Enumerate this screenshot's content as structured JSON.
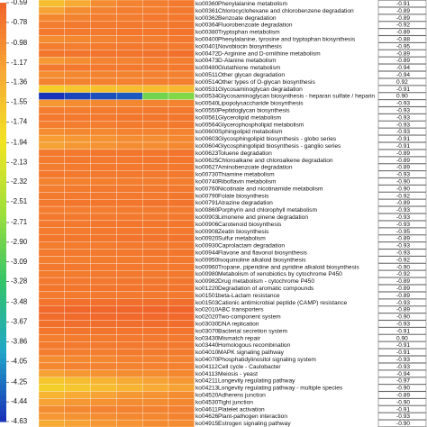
{
  "chart_data": {
    "type": "heatmap",
    "colors": [
      "#1a2fb8",
      "#1fa6c8",
      "#33c46a",
      "#9ee03a",
      "#f2e423",
      "#f7a836",
      "#f0642a"
    ],
    "ylim": [
      -4.63,
      -0.59
    ],
    "yticks": [
      -0.59,
      -0.78,
      -0.98,
      -1.17,
      -1.36,
      -1.55,
      -1.74,
      -1.94,
      -2.13,
      -2.32,
      -2.51,
      -2.71,
      {
        "value": -2.9,
        "label": "-2.90"
      },
      -3.09,
      -3.28,
      -3.48,
      -3.67,
      -3.86,
      -4.05,
      -4.25,
      -4.44,
      -4.63
    ],
    "categories": [
      "ko00360",
      "ko00361",
      "ko00362",
      "ko00364",
      "ko00380",
      "ko00400",
      "ko00401",
      "ko00472",
      "ko00473",
      "ko00480",
      "ko00511",
      "ko00514",
      "ko00531",
      "ko00534",
      "ko00540",
      "ko00550",
      "ko00561",
      "ko00564",
      "ko00600",
      "ko00603",
      "ko00604",
      "ko00623",
      "ko00625",
      "ko00627",
      "ko00730",
      "ko00740",
      "ko00760",
      "ko00790",
      "ko00791",
      "ko00860",
      "ko00903",
      "ko00906",
      "ko00908",
      "ko00920",
      "ko00930",
      "ko00944",
      "ko00950",
      "ko00960",
      "ko00980",
      "ko00982",
      "ko01220",
      "ko01501",
      "ko01503",
      "ko02010",
      "ko02020",
      "ko03030",
      "ko03070",
      "ko03430",
      "ko03440",
      "ko04010",
      "ko04070",
      "ko04112",
      "ko04113",
      "ko04211",
      "ko04213",
      "ko04520",
      "ko04530",
      "ko04611",
      "ko04626",
      "ko04915"
    ],
    "names": [
      "Phenylalanine metabolism",
      "Chlorocyclohexane and chlorobenzene degradation",
      "Benzoate degradation",
      "Fluorobenzoate degradation",
      "Tryptophan metabolism",
      "Phenylalanine, tyrosine and tryptophan biosynthesis",
      "Novobiocin biosynthesis",
      "D-Arginine and D-ornithine metabolism",
      "D-Alanine metabolism",
      "Glutathione metabolism",
      "Other glycan degradation",
      "Other types of O-glycan biosynthesis",
      "Glycosaminoglycan degradation",
      "Glycosaminoglycan biosynthesis - heparan sulfate / heparin",
      "Lipopolysaccharide biosynthesis",
      "Peptidoglycan biosynthesis",
      "Glycerolipid metabolism",
      "Glycerophospholipid metabolism",
      "Sphingolipid metabolism",
      "Glycosphingolipid biosynthesis - globo series",
      "Glycosphingolipid biosynthesis - ganglio series",
      "Toluene degradation",
      "Chloroalkane and chloroalkene degradation",
      "Aminobenzoate degradation",
      "Thiamine metabolism",
      "Riboflavin metabolism",
      "Nicotinate and nicotinamide metabolism",
      "Folate biosynthesis",
      "Atrazine degradation",
      "Porphyrin and chlorophyll metabolism",
      "Limonene and pinene degradation",
      "Carotenoid biosynthesis",
      "Zeatin biosynthesis",
      "Sulfur metabolism",
      "Caprolactam degradation",
      "Flavone and flavonol biosynthesis",
      "Isoquinoline alkaloid biosynthesis",
      "Tropane, piperidine and pyridine alkaloid biosynthesis",
      "Metabolism of xenobiotics by cytochrome P450",
      "Drug metabolism - cytochrome P450",
      "Degradation of aromatic compounds",
      "beta-Lactam resistance",
      "Cationic antimicrobial peptide (CAMP) resistance",
      "ABC transporters",
      "Two-component system",
      "DNA replication",
      "Bacterial secretion system",
      "Mismatch repair",
      "Homologous recombination",
      "MAPK signaling pathway",
      "Phosphatidylinositol signaling system",
      "Cell cycle - Caulobacter",
      "Meiosis - yeast",
      "Longevity regulating pathway",
      "Longevity regulating pathway - multiple species",
      "Adherens junction",
      "Tight junction",
      "Platelet activation",
      "Plant-pathogen interaction",
      "Estrogen signaling pathway"
    ],
    "correlations": [
      "-0.91",
      "-0.89",
      "-0.89",
      "-0.92",
      "-0.89",
      "-0.88",
      "-0.95",
      "-0.89",
      "-0.89",
      "-0.94",
      "-0.94",
      "0.92",
      "-0.91",
      "0.90",
      "-0.93",
      "-0.93",
      "-0.93",
      "-0.93",
      "-0.93",
      "-0.91",
      "-0.91",
      "-0.89",
      "-0.89",
      "-0.89",
      "-0.93",
      "-0.90",
      "-0.90",
      "-0.92",
      "-0.89",
      "-0.93",
      "-0.93",
      "-0.93",
      "-0.95",
      "-0.89",
      "-0.93",
      "-0.93",
      "-0.92",
      "-0.90",
      "-0.92",
      "-0.89",
      "-0.89",
      "-0.89",
      "-0.93",
      "-0.89",
      "-0.90",
      "-0.93",
      "-0.91",
      "0.90",
      "-0.91",
      "-0.91",
      "-0.93",
      "-0.93",
      "-0.94",
      "-0.97",
      "-0.90",
      "-0.89",
      "-0.90",
      "-0.91",
      "-0.93",
      "-0.90"
    ],
    "values": [
      [
        -1.5,
        -1.3,
        -1.0,
        -0.9,
        -0.85,
        -0.8
      ],
      [
        -1.2,
        -1.0,
        -0.9,
        -0.85,
        -0.85,
        -0.8
      ],
      [
        -0.95,
        -0.9,
        -0.85,
        -0.85,
        -0.8,
        -0.8
      ],
      [
        -0.85,
        -0.8,
        -0.8,
        -0.8,
        -0.8,
        -0.78
      ],
      [
        -0.8,
        -0.8,
        -0.8,
        -0.78,
        -0.78,
        -0.75
      ],
      [
        -1.0,
        -0.95,
        -0.9,
        -0.85,
        -0.85,
        -0.8
      ],
      [
        -0.85,
        -0.85,
        -0.82,
        -0.8,
        -0.8,
        -0.8
      ],
      [
        -0.78,
        -0.76,
        -0.75,
        -0.75,
        -0.74,
        -0.72
      ],
      [
        -1.1,
        -1.0,
        -0.9,
        -0.9,
        -0.85,
        -0.85
      ],
      [
        -0.8,
        -0.8,
        -0.8,
        -0.8,
        -0.8,
        -0.8
      ],
      [
        -1.0,
        -0.95,
        -0.9,
        -0.9,
        -0.9,
        -0.9
      ],
      [
        -0.9,
        -0.9,
        -0.88,
        -0.88,
        -0.86,
        -0.86
      ],
      [
        -1.7,
        -1.6,
        -1.55,
        -1.5,
        -1.5,
        -1.45
      ],
      [
        -4.6,
        -4.5,
        -4.45,
        -4.4,
        -2.9,
        -2.8
      ],
      [
        -1.1,
        -1.0,
        -0.95,
        -0.95,
        -0.9,
        -0.9
      ],
      [
        -0.85,
        -0.85,
        -0.82,
        -0.82,
        -0.8,
        -0.8
      ],
      [
        -0.8,
        -0.8,
        -0.8,
        -0.78,
        -0.78,
        -0.78
      ],
      [
        -0.85,
        -0.85,
        -0.85,
        -0.82,
        -0.82,
        -0.8
      ],
      [
        -1.0,
        -0.95,
        -0.95,
        -0.9,
        -0.9,
        -0.9
      ],
      [
        -1.15,
        -1.1,
        -1.05,
        -1.0,
        -1.0,
        -0.95
      ],
      [
        -1.2,
        -1.1,
        -1.05,
        -1.0,
        -1.0,
        -0.95
      ],
      [
        -0.8,
        -0.8,
        -0.78,
        -0.78,
        -0.78,
        -0.75
      ],
      [
        -0.82,
        -0.8,
        -0.8,
        -0.8,
        -0.78,
        -0.78
      ],
      [
        -0.85,
        -0.82,
        -0.8,
        -0.8,
        -0.8,
        -0.8
      ],
      [
        -0.8,
        -0.8,
        -0.8,
        -0.8,
        -0.8,
        -0.8
      ],
      [
        -0.9,
        -0.88,
        -0.86,
        -0.85,
        -0.85,
        -0.85
      ],
      [
        -0.85,
        -0.82,
        -0.8,
        -0.8,
        -0.8,
        -0.8
      ],
      [
        -0.82,
        -0.8,
        -0.8,
        -0.8,
        -0.8,
        -0.78
      ],
      [
        -0.8,
        -0.78,
        -0.78,
        -0.78,
        -0.76,
        -0.76
      ],
      [
        -0.85,
        -0.85,
        -0.85,
        -0.82,
        -0.82,
        -0.82
      ],
      [
        -0.8,
        -0.8,
        -0.8,
        -0.8,
        -0.8,
        -0.8
      ],
      [
        -0.8,
        -0.8,
        -0.78,
        -0.78,
        -0.78,
        -0.78
      ],
      [
        -0.82,
        -0.82,
        -0.8,
        -0.8,
        -0.8,
        -0.8
      ],
      [
        -0.78,
        -0.78,
        -0.78,
        -0.76,
        -0.76,
        -0.76
      ],
      [
        -0.85,
        -0.82,
        -0.82,
        -0.8,
        -0.8,
        -0.8
      ],
      [
        -0.8,
        -0.8,
        -0.8,
        -0.8,
        -0.78,
        -0.78
      ],
      [
        -0.85,
        -0.85,
        -0.82,
        -0.82,
        -0.8,
        -0.8
      ],
      [
        -0.8,
        -0.8,
        -0.8,
        -0.8,
        -0.8,
        -0.8
      ],
      [
        -0.82,
        -0.82,
        -0.8,
        -0.8,
        -0.8,
        -0.8
      ],
      [
        -0.8,
        -0.8,
        -0.8,
        -0.78,
        -0.78,
        -0.78
      ],
      [
        -0.78,
        -0.78,
        -0.76,
        -0.76,
        -0.76,
        -0.75
      ],
      [
        -0.8,
        -0.8,
        -0.8,
        -0.8,
        -0.8,
        -0.8
      ],
      [
        -0.75,
        -0.72,
        -0.72,
        -0.7,
        -0.7,
        -0.7
      ],
      [
        -0.65,
        -0.62,
        -0.62,
        -0.62,
        -0.6,
        -0.6
      ],
      [
        -0.68,
        -0.66,
        -0.65,
        -0.65,
        -0.64,
        -0.64
      ],
      [
        -0.72,
        -0.7,
        -0.7,
        -0.7,
        -0.68,
        -0.68
      ],
      [
        -0.78,
        -0.76,
        -0.76,
        -0.75,
        -0.75,
        -0.75
      ],
      [
        -0.85,
        -0.82,
        -0.82,
        -0.8,
        -0.8,
        -0.8
      ],
      [
        -0.82,
        -0.8,
        -0.8,
        -0.8,
        -0.8,
        -0.8
      ],
      [
        -0.85,
        -0.85,
        -0.85,
        -0.82,
        -0.82,
        -0.82
      ],
      [
        -1.0,
        -0.95,
        -0.95,
        -0.9,
        -0.9,
        -0.9
      ],
      [
        -0.95,
        -0.9,
        -0.9,
        -0.9,
        -0.88,
        -0.88
      ],
      [
        -1.2,
        -1.1,
        -1.05,
        -1.0,
        -1.0,
        -0.95
      ],
      [
        -1.6,
        -1.5,
        -1.4,
        -1.3,
        -1.2,
        -1.1
      ],
      [
        -1.7,
        -1.6,
        -1.5,
        -1.4,
        -1.3,
        -1.2
      ],
      [
        -1.4,
        -1.3,
        -1.2,
        -1.1,
        -1.05,
        -1.0
      ],
      [
        -1.2,
        -1.1,
        -1.05,
        -1.0,
        -1.0,
        -0.95
      ],
      [
        -1.0,
        -0.95,
        -0.9,
        -0.9,
        -0.9,
        -0.88
      ],
      [
        -1.1,
        -1.05,
        -1.0,
        -0.95,
        -0.95,
        -0.9
      ],
      [
        -1.3,
        -1.2,
        -1.1,
        -1.05,
        -1.0,
        -1.0
      ]
    ]
  }
}
